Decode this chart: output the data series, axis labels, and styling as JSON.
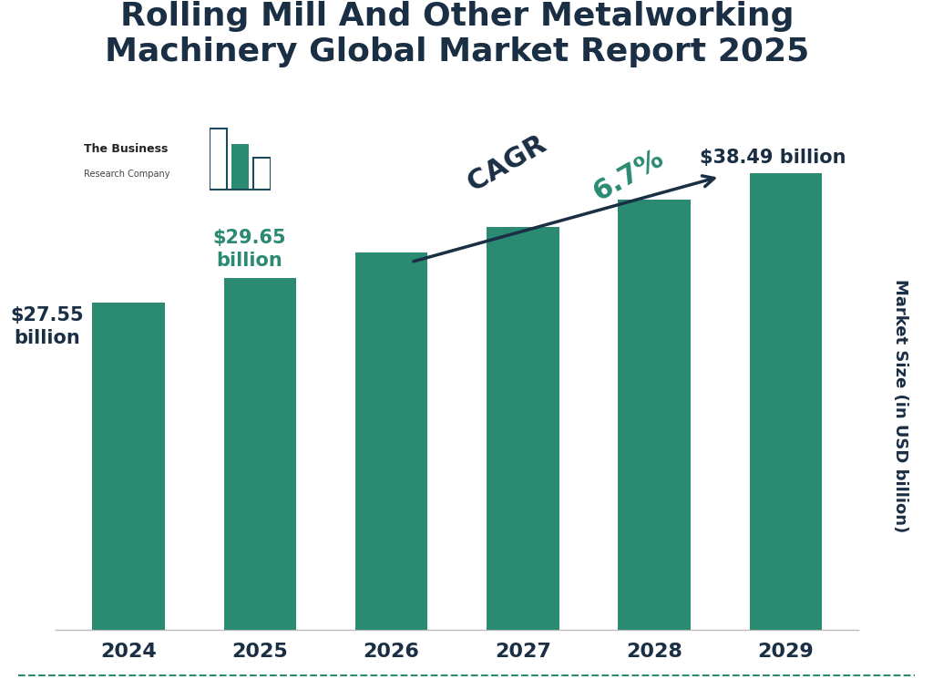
{
  "title": "Rolling Mill And Other Metalworking\nMachinery Global Market Report 2025",
  "title_color": "#1a2e44",
  "title_fontsize": 26,
  "title_fontweight": "bold",
  "categories": [
    "2024",
    "2025",
    "2026",
    "2027",
    "2028",
    "2029"
  ],
  "values": [
    27.55,
    29.65,
    31.84,
    33.97,
    36.25,
    38.49
  ],
  "bar_color": "#2a8a72",
  "ylabel": "Market Size (in USD billion)",
  "ylabel_color": "#1a2e44",
  "ylabel_fontsize": 13,
  "xlabel_fontsize": 16,
  "xlabel_color": "#1a2e44",
  "cagr_label": "CAGR  ",
  "cagr_pct": "6.7%",
  "cagr_fontsize": 22,
  "cagr_color": "#1a2e44",
  "cagr_pct_color": "#2a8a72",
  "background_color": "#ffffff",
  "dashed_line_color": "#2a8a72",
  "arrow_color": "#1a2e44",
  "ylim": [
    0,
    46
  ],
  "bar_width": 0.55,
  "label_2024": "$27.55\nbillion",
  "label_2025": "$29.65\nbillion",
  "label_2029": "$38.49 billion",
  "label_2024_color": "#1a2e44",
  "label_2025_color": "#2a8a72",
  "label_2029_color": "#1a2e44",
  "bar_label_fontsize": 15
}
